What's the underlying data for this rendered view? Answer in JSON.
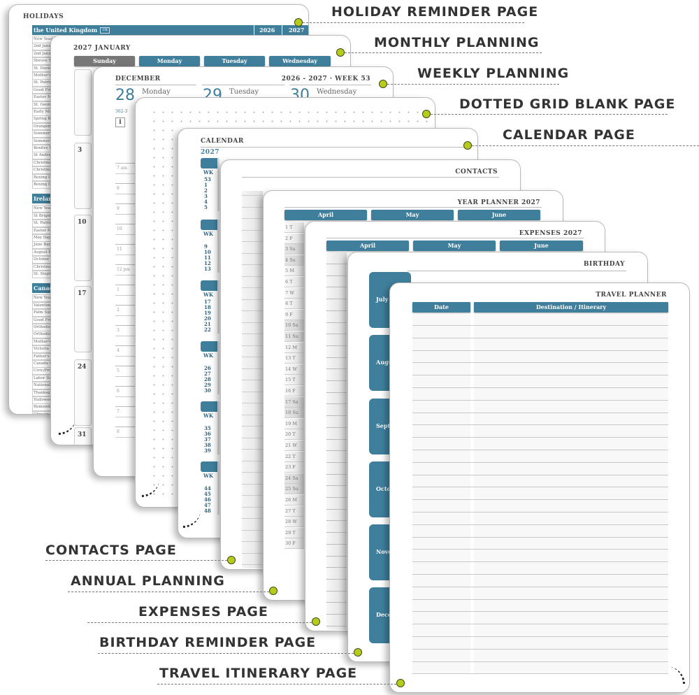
{
  "colors": {
    "accent": "#3f7f9c",
    "dot": "#b5cc1c"
  },
  "callouts": {
    "holiday": "HOLIDAY REMINDER PAGE",
    "monthly": "MONTHLY PLANNING",
    "weekly": "WEEKLY PLANNING",
    "dotted": "DOTTED GRID BLANK PAGE",
    "calendar": "CALENDAR PAGE",
    "contacts": "CONTACTS PAGE",
    "annual": "ANNUAL PLANNING",
    "expenses": "EXPENSES PAGE",
    "birthday": "BIRTHDAY REMINDER PAGE",
    "travel": "TRAVEL ITINERARY PAGE"
  },
  "holidays": {
    "title": "HOLIDAYS",
    "years": [
      "2026",
      "2027"
    ],
    "groups": [
      {
        "country": "the United Kingdom",
        "badge": "UK",
        "items": [
          "New Year's Day",
          "2nd January",
          "2nd January",
          "Shrove Tuesday",
          "St. David's Day",
          "Mother's Day",
          "St. Patrick's Day",
          "Good Friday",
          "Easter Monday",
          "St. George's Day",
          "Early May Bank Holiday",
          "Spring Bank Holiday",
          "Orangemen's Day",
          "Summer Bank Holiday",
          "Summer Bank Holiday",
          "Bonfire Night",
          "St Andrew's Day",
          "Christmas Eve",
          "Christmas Day",
          "Boxing Day",
          "Boxing Day"
        ]
      },
      {
        "country": "Ireland",
        "items": [
          "New Year's Day",
          "St Brigid's Day",
          "St. Patrick's Day",
          "Easter Monday",
          "May Day",
          "June Bank Holiday",
          "August Bank Holiday",
          "October Bank Holiday",
          "Christmas Day",
          "St. Stephen's Day"
        ]
      },
      {
        "country": "Canada",
        "items": [
          "New Year's Day",
          "Valentine's Day",
          "Palm Sunday",
          "Good Friday",
          "Orthodox Good Friday",
          "Orthodox Easter",
          "Mother's Day",
          "Victoria Day",
          "Father's Day",
          "Canada Day",
          "Civic/Provincial Day",
          "Labor Day",
          "National Day",
          "Thanksgiving",
          "Halloween",
          "Remembrance Day",
          "Christmas Eve",
          "Christmas Day",
          "Boxing Day",
          "Boxing Day",
          "New Year's Eve"
        ]
      }
    ]
  },
  "monthly": {
    "title": "2027 JANUARY",
    "days": [
      "Sunday",
      "Monday",
      "Tuesday",
      "Wednesday"
    ],
    "dates": [
      "",
      "3",
      "10",
      "17",
      "24",
      "31"
    ]
  },
  "weekly": {
    "month": "DECEMBER",
    "week": "2026 - 2027 · WEEK 53",
    "days": [
      {
        "num": "28",
        "name": "Monday"
      },
      {
        "num": "29",
        "name": "Tuesday"
      },
      {
        "num": "30",
        "name": "Wednesday"
      }
    ],
    "daycount": "362-3",
    "info": "i",
    "times": [
      "7 am",
      "8",
      "9",
      "10",
      "11",
      "12 pm",
      "1",
      "2",
      "3",
      "4",
      "5",
      "6",
      "7",
      "8"
    ]
  },
  "calendar": {
    "title": "CALENDAR",
    "year": "2027",
    "wk": "WK",
    "blocks": [
      [
        "53",
        "1",
        "2",
        "3",
        "4",
        "5"
      ],
      [
        "",
        "9",
        "10",
        "11",
        "12",
        "13"
      ],
      [
        "17",
        "18",
        "19",
        "20",
        "21",
        "22"
      ],
      [
        "",
        "26",
        "27",
        "28",
        "29",
        "30"
      ],
      [
        "",
        "35",
        "36",
        "37",
        "38",
        "39"
      ],
      [
        "",
        "44",
        "45",
        "46",
        "47",
        "48"
      ]
    ]
  },
  "contacts": {
    "title": "CONTACTS"
  },
  "year_planner": {
    "title": "YEAR PLANNER 2027",
    "months": [
      "April",
      "May",
      "June"
    ],
    "days": [
      "1 T",
      "2 F",
      "3 Sa",
      "4 Su",
      "5 M",
      "6 T",
      "7 W",
      "8 T",
      "9 F",
      "10 Sa",
      "11 Su",
      "12 M",
      "13 T",
      "14 W",
      "15 T",
      "16 F",
      "17 Sa",
      "18 Su",
      "19 M",
      "20 T",
      "21 W",
      "22 T",
      "23 F",
      "24 Sa",
      "25 Su",
      "26 M",
      "27 T",
      "28 W",
      "29 T",
      "30 F"
    ]
  },
  "expenses": {
    "title": "EXPENSES 2027",
    "months": [
      "April",
      "May",
      "June"
    ]
  },
  "birthday": {
    "title": "BIRTHDAY",
    "months": [
      "July",
      "August",
      "September",
      "October",
      "November",
      "December"
    ]
  },
  "travel": {
    "title": "TRAVEL PLANNER",
    "columns": [
      "Date",
      "Destination / Itinerary"
    ]
  }
}
